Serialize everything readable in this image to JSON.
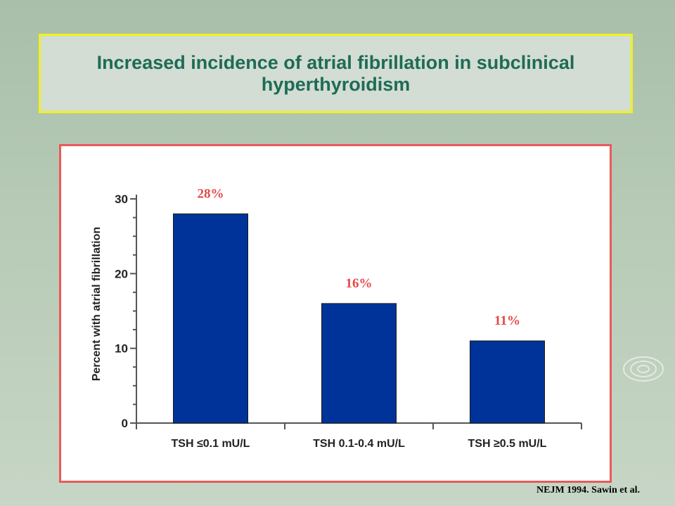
{
  "title": "Increased incidence of atrial fibrillation in subclinical hyperthyroidism",
  "citation": "NEJM 1994. Sawin et al.",
  "colors": {
    "title_text": "#1e6b57",
    "title_border": "#f2f21a",
    "chart_border": "#e95a5a",
    "bar": "#003399",
    "data_label": "#e54848"
  },
  "chart_data": {
    "type": "bar",
    "categories": [
      "TSH ≤0.1 mU/L",
      "TSH 0.1-0.4 mU/L",
      "TSH ≥0.5 mU/L"
    ],
    "values": [
      28,
      16,
      11
    ],
    "data_labels": [
      "28%",
      "16%",
      "11%"
    ],
    "title": "",
    "xlabel": "",
    "ylabel": "Percent with atrial fibrillation",
    "ylim": [
      0,
      30
    ],
    "yticks": [
      0,
      10,
      20,
      30
    ],
    "grid": false,
    "legend": "none"
  }
}
